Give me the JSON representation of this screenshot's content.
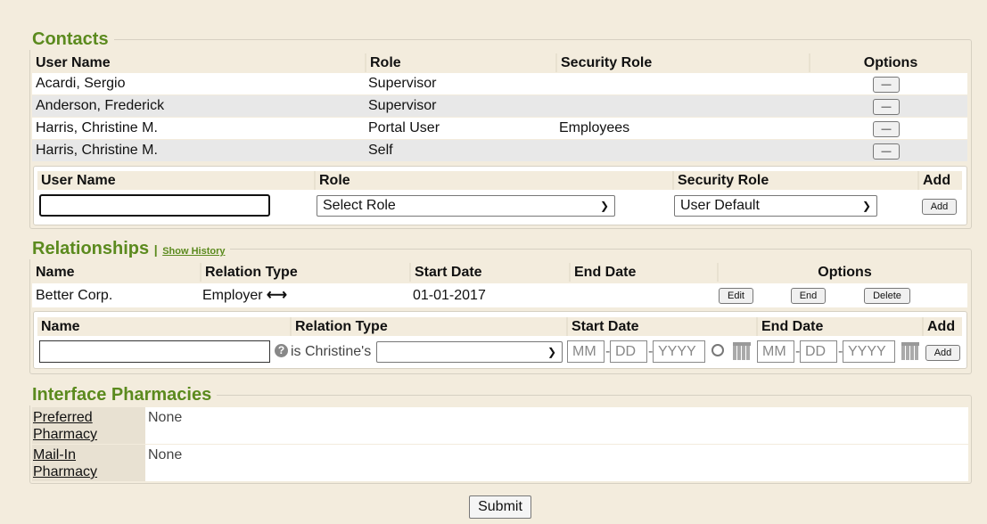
{
  "contacts": {
    "title": "Contacts",
    "headers": [
      "User Name",
      "Role",
      "Security Role",
      "Options"
    ],
    "rows": [
      {
        "name": "Acardi, Sergio",
        "role": "Supervisor",
        "security": ""
      },
      {
        "name": "Anderson, Frederick",
        "role": "Supervisor",
        "security": ""
      },
      {
        "name": "Harris, Christine M.",
        "role": "Portal User",
        "security": "Employees"
      },
      {
        "name": "Harris, Christine M.",
        "role": "Self",
        "security": ""
      }
    ],
    "remove_label": "—",
    "add_form": {
      "headers": [
        "User Name",
        "Role",
        "Security Role",
        "Add"
      ],
      "user_value": "",
      "role_select": "Select Role",
      "security_select": "User Default",
      "add_label": "Add"
    }
  },
  "relationships": {
    "title": "Relationships",
    "separator": "|",
    "show_history": "Show History",
    "headers": [
      "Name",
      "Relation Type",
      "Start Date",
      "End Date",
      "Options"
    ],
    "rows": [
      {
        "name": "Better Corp.",
        "type": "Employer",
        "start": "01-01-2017",
        "end": ""
      }
    ],
    "edit": "Edit",
    "end": "End",
    "delete": "Delete",
    "add_form": {
      "headers": [
        "Name",
        "Relation Type",
        "Start Date",
        "End Date",
        "Add"
      ],
      "is_label": "is Christine's",
      "relation_select": "",
      "mm": "MM",
      "dd": "DD",
      "yyyy": "YYYY",
      "dash": "-",
      "add_label": "Add"
    }
  },
  "pharmacies": {
    "title": "Interface Pharmacies",
    "rows": [
      {
        "label1": "Preferred",
        "label2": "Pharmacy",
        "value": "None"
      },
      {
        "label1": "Mail-In",
        "label2": "Pharmacy",
        "value": "None"
      }
    ]
  },
  "submit": "Submit"
}
